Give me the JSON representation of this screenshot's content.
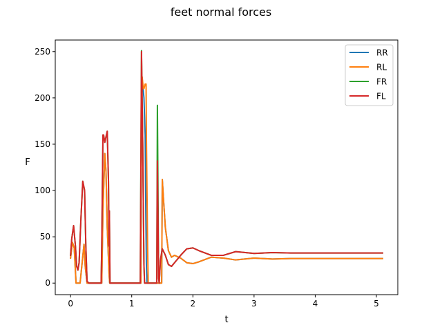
{
  "chart_data": {
    "type": "line",
    "title": "feet normal forces",
    "xlabel": "t",
    "ylabel": "F",
    "xlim": [
      -0.25,
      5.35
    ],
    "ylim": [
      -12.5,
      262.5
    ],
    "xticks": [
      0,
      1,
      2,
      3,
      4,
      5
    ],
    "xtick_labels": [
      "0",
      "1",
      "2",
      "3",
      "4",
      "5"
    ],
    "yticks": [
      0,
      50,
      100,
      150,
      200,
      250
    ],
    "ytick_labels": [
      "0",
      "50",
      "100",
      "150",
      "200",
      "250"
    ],
    "grid": false,
    "legend_position": "top-right",
    "series": [
      {
        "name": "RR",
        "color": "#1f77b4",
        "x": [
          0,
          0.03,
          0.06,
          0.09,
          0.11,
          0.13,
          0.155,
          0.156,
          0.22,
          0.24,
          0.27,
          0.28,
          0.5,
          0.51,
          0.53,
          0.56,
          0.58,
          0.6,
          0.63,
          0.64,
          0.65,
          1.15,
          1.155,
          1.17,
          1.2,
          1.22,
          1.23,
          1.24,
          1.25,
          1.26,
          1.49,
          1.5,
          1.52,
          1.55,
          1.6,
          1.65,
          1.7,
          1.8,
          1.9,
          2.0,
          2.1,
          2.3,
          2.5,
          2.7,
          3.0,
          3.3,
          3.6,
          4.0,
          4.5,
          5.1
        ],
        "y": [
          27,
          44,
          38,
          0,
          0,
          0,
          0,
          0,
          42,
          18,
          0,
          0,
          0,
          0,
          80,
          140,
          120,
          60,
          10,
          0,
          0,
          0,
          120,
          222,
          200,
          160,
          80,
          20,
          0,
          0,
          0,
          112,
          90,
          60,
          35,
          28,
          30,
          27,
          22,
          21,
          23,
          28,
          27,
          25,
          27,
          26,
          26.5,
          26.5,
          26.5,
          26.5
        ]
      },
      {
        "name": "RL",
        "color": "#ff7f0e",
        "x": [
          0,
          0.03,
          0.06,
          0.09,
          0.11,
          0.13,
          0.155,
          0.156,
          0.22,
          0.24,
          0.27,
          0.28,
          0.5,
          0.51,
          0.53,
          0.56,
          0.58,
          0.6,
          0.63,
          0.64,
          0.65,
          1.15,
          1.155,
          1.17,
          1.19,
          1.2,
          1.22,
          1.235,
          1.24,
          1.26,
          1.27,
          1.49,
          1.5,
          1.52,
          1.55,
          1.6,
          1.65,
          1.7,
          1.8,
          1.9,
          2.0,
          2.1,
          2.3,
          2.5,
          2.7,
          3.0,
          3.3,
          3.6,
          4.0,
          4.5,
          5.1
        ],
        "y": [
          27,
          44,
          38,
          0,
          0,
          0,
          0,
          0,
          42,
          18,
          0,
          0,
          0,
          0,
          80,
          140,
          120,
          60,
          10,
          0,
          0,
          0,
          120,
          223,
          210,
          210,
          215,
          215,
          160,
          40,
          0,
          0,
          112,
          90,
          60,
          35,
          28,
          30,
          27,
          22,
          21,
          23,
          28,
          27,
          25,
          27,
          26,
          26.5,
          26.5,
          26.5,
          26.5
        ]
      },
      {
        "name": "FR",
        "color": "#2ca02c",
        "x": [
          0,
          0.02,
          0.05,
          0.08,
          0.1,
          0.12,
          0.14,
          0.17,
          0.2,
          0.23,
          0.25,
          0.27,
          0.3,
          0.32,
          0.5,
          0.51,
          0.52,
          0.53,
          0.54,
          0.56,
          0.58,
          0.6,
          0.62,
          0.63,
          0.635,
          0.64,
          0.645,
          0.65,
          1.13,
          1.14,
          1.16,
          1.18,
          1.2,
          1.21,
          1.22,
          1.41,
          1.415,
          1.42,
          1.44,
          1.45,
          1.47,
          1.5,
          1.55,
          1.6,
          1.65,
          1.7,
          1.8,
          1.9,
          2.0,
          2.1,
          2.3,
          2.5,
          2.7,
          3.0,
          3.3,
          3.6,
          4.0,
          4.5,
          5.1
        ],
        "y": [
          30,
          48,
          62,
          40,
          18,
          14,
          22,
          70,
          110,
          100,
          40,
          2,
          0,
          0,
          0,
          40,
          100,
          160,
          160,
          152,
          158,
          164,
          110,
          40,
          78,
          40,
          0,
          0,
          0,
          0,
          251,
          150,
          20,
          0,
          0,
          0,
          100,
          192,
          5,
          0,
          25,
          37,
          30,
          20,
          18,
          22,
          30,
          37,
          38,
          35,
          30,
          30,
          34,
          32,
          33,
          32.5,
          32.5,
          32.5,
          32.5
        ]
      },
      {
        "name": "FL",
        "color": "#d62728",
        "x": [
          0,
          0.02,
          0.05,
          0.08,
          0.1,
          0.12,
          0.14,
          0.17,
          0.2,
          0.23,
          0.25,
          0.27,
          0.3,
          0.32,
          0.5,
          0.51,
          0.52,
          0.53,
          0.54,
          0.56,
          0.58,
          0.6,
          0.62,
          0.63,
          0.635,
          0.64,
          0.645,
          0.65,
          1.13,
          1.14,
          1.16,
          1.18,
          1.2,
          1.21,
          1.22,
          1.41,
          1.415,
          1.42,
          1.44,
          1.45,
          1.47,
          1.5,
          1.55,
          1.6,
          1.65,
          1.7,
          1.8,
          1.9,
          2.0,
          2.1,
          2.3,
          2.5,
          2.7,
          3.0,
          3.3,
          3.6,
          4.0,
          4.5,
          5.1
        ],
        "y": [
          30,
          48,
          62,
          40,
          18,
          14,
          22,
          70,
          110,
          100,
          40,
          2,
          0,
          0,
          0,
          40,
          100,
          160,
          160,
          152,
          158,
          164,
          110,
          40,
          78,
          40,
          0,
          0,
          0,
          0,
          250,
          150,
          20,
          0,
          0,
          0,
          80,
          132,
          5,
          0,
          25,
          37,
          30,
          20,
          18,
          22,
          30,
          37,
          38,
          35,
          30,
          30,
          34,
          32,
          33,
          32.5,
          32.5,
          32.5,
          32.5
        ]
      }
    ]
  }
}
